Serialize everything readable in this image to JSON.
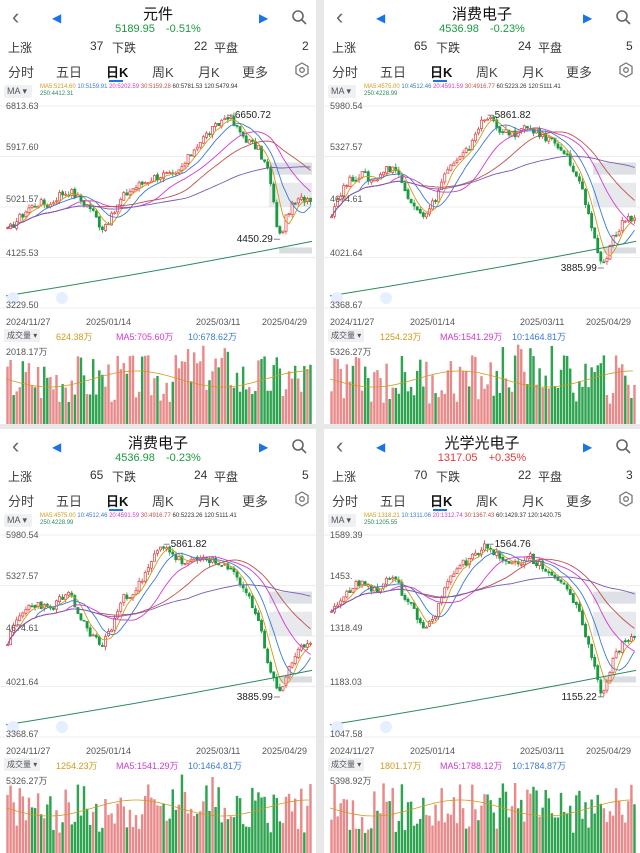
{
  "colors": {
    "up": "#e23b3b",
    "down": "#1b9a3e",
    "accent": "#1a73e8",
    "ma5": "#d09a1a",
    "ma10": "#3a7bd5",
    "ma20": "#d23ad2",
    "ma30": "#c0504d",
    "ma60": "#333333",
    "ma250": "#2a8a5a"
  },
  "icons": {
    "back": "chevron-left-icon",
    "prev": "triangle-left-icon",
    "next": "triangle-right-icon",
    "search": "search-icon",
    "settings": "gear-icon",
    "ma_dropdown": "caret-down-icon"
  },
  "tabs_labels": [
    "分时",
    "五日",
    "日K",
    "周K",
    "月K",
    "更多"
  ],
  "stat_labels": {
    "up": "上涨",
    "down": "下跌",
    "flat": "平盘"
  },
  "ma_tag": "MA ▾",
  "vol_tag": "成交量 ▾",
  "panels": [
    {
      "title": "元件",
      "price": "5189.95",
      "change": "-0.51%",
      "change_dir": "down",
      "stats": {
        "up": "37",
        "down": "22",
        "flat": "2"
      },
      "ma": {
        "ma5": "MA5:5214.60",
        "ma10": "10:5159.91",
        "ma20": "20:5202.59",
        "ma30": "30:5159.28",
        "ma60": "60:5781.53",
        "ma120": "120:5479.94",
        "ma250": "250:4412.31"
      },
      "y_labels": [
        "6813.63",
        "5917.60",
        "5021.57",
        "4125.53",
        "3229.50"
      ],
      "x_labels": [
        "2024/11/27",
        "2025/01/14",
        "2025/03/11",
        "2025/04/29"
      ],
      "high_label": "6650.72",
      "low_label": "4450.29",
      "vol": {
        "v": "624.38万",
        "ma5": "MA5:705.60万",
        "ma10": "10:678.62万",
        "max": "2018.17万"
      },
      "chart_data": {
        "type": "candlestick",
        "x_start": "2024/11/27",
        "x_end": "2025/04/29",
        "ylim": [
          3229.5,
          6813.63
        ],
        "close_path": [
          4600,
          4800,
          5000,
          5100,
          5050,
          5250,
          5300,
          5150,
          5000,
          4650,
          4850,
          5200,
          5350,
          5450,
          5550,
          5600,
          5550,
          5800,
          6100,
          6300,
          6450,
          6650.72,
          6400,
          6200,
          6050,
          5650,
          4450.29,
          5000,
          5150,
          5189.95
        ],
        "high": 6650.72,
        "low": 4450.29
      }
    },
    {
      "title": "消费电子",
      "price": "4536.98",
      "change": "-0.23%",
      "change_dir": "down",
      "stats": {
        "up": "65",
        "down": "24",
        "flat": "5"
      },
      "ma": {
        "ma5": "MA5:4575.00",
        "ma10": "10:4512.46",
        "ma20": "20:4591.59",
        "ma30": "30:4916.77",
        "ma60": "60:5223.26",
        "ma120": "120:5111.41",
        "ma250": "250:4228.99"
      },
      "y_labels": [
        "5980.54",
        "5327.57",
        "4674.61",
        "4021.64",
        "3368.67"
      ],
      "x_labels": [
        "2024/11/27",
        "2025/01/14",
        "2025/03/11",
        "2025/04/29"
      ],
      "high_label": "5861.82",
      "low_label": "3885.99",
      "vol": {
        "v": "1254.23万",
        "ma5": "MA5:1541.29万",
        "ma10": "10:1464.81万",
        "max": "5326.27万"
      },
      "chart_data": {
        "type": "candlestick",
        "x_start": "2024/11/27",
        "x_end": "2025/04/29",
        "ylim": [
          3368.67,
          5980.54
        ],
        "close_path": [
          4600,
          4900,
          5050,
          5100,
          5000,
          5150,
          5200,
          4900,
          4700,
          4550,
          4800,
          5150,
          5250,
          5400,
          5700,
          5861.82,
          5700,
          5600,
          5650,
          5700,
          5600,
          5550,
          5450,
          5200,
          4900,
          4300,
          3885.99,
          4300,
          4500,
          4536.98
        ],
        "high": 5861.82,
        "low": 3885.99
      }
    },
    {
      "title": "消费电子",
      "price": "4536.98",
      "change": "-0.23%",
      "change_dir": "down",
      "stats": {
        "up": "65",
        "down": "24",
        "flat": "5"
      },
      "ma": {
        "ma5": "MA5:4575.00",
        "ma10": "10:4512.46",
        "ma20": "20:4591.59",
        "ma30": "30:4916.77",
        "ma60": "60:5223.26",
        "ma120": "120:5111.41",
        "ma250": "250:4228.99"
      },
      "y_labels": [
        "5980.54",
        "5327.57",
        "4674.61",
        "4021.64",
        "3368.67"
      ],
      "x_labels": [
        "2024/11/27",
        "2025/01/14",
        "2025/03/11",
        "2025/04/29"
      ],
      "high_label": "5861.82",
      "low_label": "3885.99",
      "vol": {
        "v": "1254.23万",
        "ma5": "MA5:1541.29万",
        "ma10": "10:1464.81万",
        "max": "5326.27万"
      },
      "chart_data": {
        "type": "candlestick",
        "x_start": "2024/11/27",
        "x_end": "2025/04/29",
        "ylim": [
          3368.67,
          5980.54
        ],
        "close_path": [
          4600,
          4900,
          5050,
          5100,
          5000,
          5150,
          5200,
          4900,
          4700,
          4550,
          4800,
          5150,
          5250,
          5400,
          5700,
          5861.82,
          5700,
          5600,
          5650,
          5700,
          5600,
          5550,
          5450,
          5200,
          4900,
          4300,
          3885.99,
          4300,
          4500,
          4536.98
        ],
        "high": 5861.82,
        "low": 3885.99
      }
    },
    {
      "title": "光学光电子",
      "price": "1317.05",
      "change": "+0.35%",
      "change_dir": "up",
      "stats": {
        "up": "70",
        "down": "22",
        "flat": "3"
      },
      "ma": {
        "ma5": "MA5:1318.21",
        "ma10": "10:1311.06",
        "ma20": "20:1312.74",
        "ma30": "30:1367.43",
        "ma60": "60:1429.37",
        "ma120": "120:1420.75",
        "ma250": "250:1205.55"
      },
      "y_labels": [
        "1589.39",
        "1453.",
        "1318.49",
        "1183.03",
        "1047.58"
      ],
      "x_labels": [
        "2024/11/27",
        "2025/01/14",
        "2025/03/11",
        "2025/04/29"
      ],
      "high_label": "1564.76",
      "low_label": "1155.22",
      "vol": {
        "v": "1801.17万",
        "ma5": "MA5:1788.12万",
        "ma10": "10:1784.87万",
        "max": "5398.92万"
      },
      "chart_data": {
        "type": "candlestick",
        "x_start": "2024/11/27",
        "x_end": "2025/04/29",
        "ylim": [
          1047.58,
          1589.39
        ],
        "close_path": [
          1390,
          1420,
          1450,
          1470,
          1440,
          1460,
          1480,
          1420,
          1380,
          1330,
          1380,
          1460,
          1500,
          1520,
          1540,
          1564.76,
          1530,
          1510,
          1520,
          1530,
          1510,
          1490,
          1460,
          1420,
          1360,
          1250,
          1155.22,
          1270,
          1300,
          1317.05
        ],
        "high": 1564.76,
        "low": 1155.22
      }
    }
  ]
}
